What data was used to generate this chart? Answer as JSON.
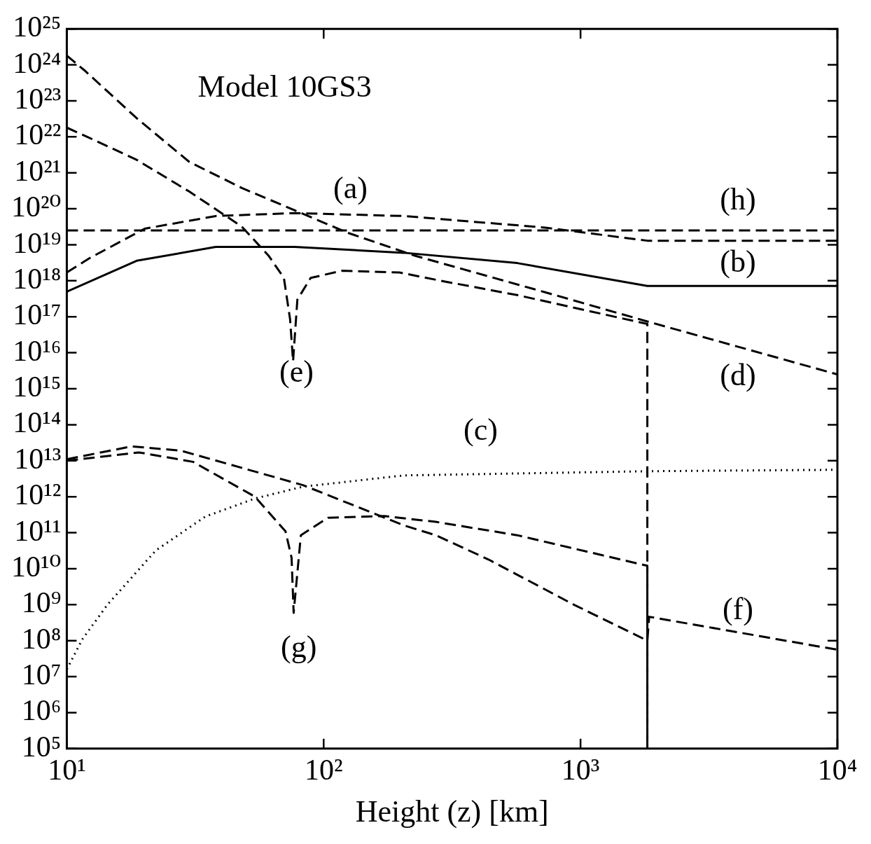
{
  "chart_data": {
    "type": "line",
    "xlabel": "Height (z) [km]",
    "log": "xy",
    "grid": false,
    "legend": false,
    "marker": "none",
    "xlim": [
      10,
      10000
    ],
    "ylim": [
      100000.0,
      1e+25
    ],
    "xticks": [
      {
        "value": 10,
        "label": "10¹"
      },
      {
        "value": 100,
        "label": "10²"
      },
      {
        "value": 1000,
        "label": "10³"
      },
      {
        "value": 10000,
        "label": "10⁴"
      }
    ],
    "yticks": [
      {
        "value": 100000.0,
        "label": "10⁵"
      },
      {
        "value": 1000000.0,
        "label": "10⁶"
      },
      {
        "value": 10000000.0,
        "label": "10⁷"
      },
      {
        "value": 100000000.0,
        "label": "10⁸"
      },
      {
        "value": 1000000000.0,
        "label": "10⁹"
      },
      {
        "value": 10000000000.0,
        "label": "10¹⁰"
      },
      {
        "value": 100000000000.0,
        "label": "10¹¹"
      },
      {
        "value": 1000000000000.0,
        "label": "10¹²"
      },
      {
        "value": 10000000000000.0,
        "label": "10¹³"
      },
      {
        "value": 100000000000000.0,
        "label": "10¹⁴"
      },
      {
        "value": 1000000000000000.0,
        "label": "10¹⁵"
      },
      {
        "value": 1e+16,
        "label": "10¹⁶"
      },
      {
        "value": 1e+17,
        "label": "10¹⁷"
      },
      {
        "value": 1e+18,
        "label": "10¹⁸"
      },
      {
        "value": 1e+19,
        "label": "10¹⁹"
      },
      {
        "value": 1e+20,
        "label": "10²⁰"
      },
      {
        "value": 1e+21,
        "label": "10²¹"
      },
      {
        "value": 1e+22,
        "label": "10²²"
      },
      {
        "value": 1e+23,
        "label": "10²³"
      },
      {
        "value": 1e+24,
        "label": "10²⁴"
      },
      {
        "value": 1e+25,
        "label": "10²⁵"
      }
    ],
    "series": [
      {
        "color": "#000000",
        "line_style": "dashed",
        "x": [
          10,
          12.3,
          20.1,
          38,
          77,
          205,
          728,
          1820,
          10000
        ],
        "values": [
          1.7e+18,
          4.3e+18,
          2.8e+19,
          6.3e+19,
          7.6e+19,
          6.3e+19,
          3e+19,
          1.3e+19,
          1.3e+19
        ]
      },
      {
        "color": "#000000",
        "line_style": "solid",
        "x": [
          10,
          18.7,
          38,
          77,
          205,
          567,
          1820,
          10000
        ],
        "values": [
          5e+17,
          3.6e+18,
          8.7e+18,
          8.7e+18,
          6e+18,
          3.1e+18,
          7.2e+17,
          7.2e+17
        ]
      },
      {
        "color": "#000000",
        "line_style": "dotted",
        "x": [
          10,
          11.5,
          14.4,
          22.2,
          34.6,
          54,
          83,
          205,
          1820,
          10000
        ],
        "values": [
          16000000.0,
          110000000.0,
          1000000000.0,
          32000000000.0,
          280000000000.0,
          890000000000.0,
          1900000000000.0,
          3900000000000.0,
          5100000000000.0,
          5600000000000.0
        ]
      },
      {
        "color": "#000000",
        "line_style": "dashed",
        "x": [
          10,
          11.7,
          18.7,
          30,
          48,
          77,
          123,
          226,
          728,
          1820,
          10000
        ],
        "values": [
          1.8e+24,
          7.1e+23,
          3.3e+22,
          2e+21,
          3.8e+20,
          9.1e+19,
          2.2e+19,
          5e+18,
          4.8e+17,
          7.4e+16,
          2500000000000000.0
        ]
      },
      {
        "color": "#000000",
        "line_style": "dashed",
        "x": [
          10,
          12,
          18.7,
          30,
          48,
          61,
          70,
          74,
          76,
          79,
          89,
          118,
          197,
          286,
          567,
          1820,
          1820
        ],
        "values": [
          1.8e+22,
          1e+22,
          2.3e+21,
          3e+20,
          3.2e+19,
          5e+18,
          1.2e+18,
          8.5e+16,
          5800000000000000.0,
          3e+17,
          1.2e+18,
          1.9e+18,
          1.7e+18,
          1e+18,
          4e+17,
          6.3e+16,
          100000.0
        ]
      },
      {
        "color": "#000000",
        "line_style": "dashed",
        "x": [
          10,
          17.9,
          27.8,
          83,
          205,
          273,
          438,
          942,
          1820,
          1850,
          10000
        ],
        "values": [
          11000000000000.0,
          25000000000000.0,
          19000000000000.0,
          2100000000000.0,
          160000000000.0,
          85000000000.0,
          18000000000.0,
          1000000000.0,
          100000000.0,
          460000000.0,
          56000000.0
        ]
      },
      {
        "color": "#000000",
        "line_style": "dashed",
        "x": [
          10,
          19.1,
          31,
          54,
          71,
          75,
          76.4,
          81.5,
          104,
          172,
          273,
          567,
          1820,
          1820
        ],
        "values": [
          10000000000000.0,
          17000000000000.0,
          9300000000000.0,
          1000000000000.0,
          110000000000.0,
          20000000000.0,
          590000000.0,
          85000000000.0,
          260000000000.0,
          290000000000.0,
          200000000000.0,
          85000000000.0,
          12000000000.0,
          100000.0
        ]
      },
      {
        "color": "#000000",
        "line_style": "dashed",
        "x": [
          10,
          10000
        ],
        "values": [
          2.5e+19,
          2.5e+19
        ]
      }
    ],
    "annotations": [
      "Model 10GS3",
      "(a)",
      "(h)",
      "(b)",
      "(d)",
      "(e)",
      "(c)",
      "(f)",
      "(g)"
    ]
  }
}
